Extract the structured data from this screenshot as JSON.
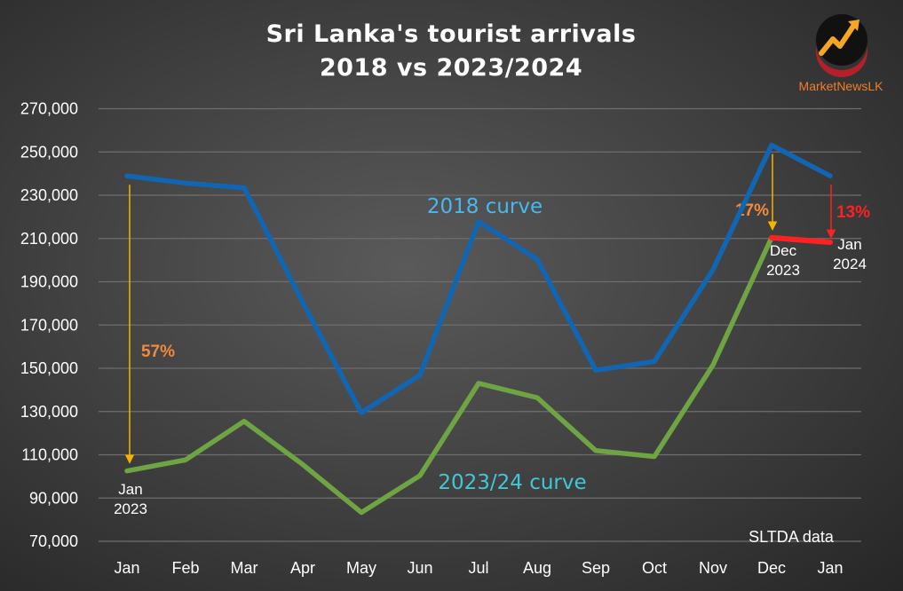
{
  "title_line1": "Sri Lanka's tourist arrivals",
  "title_line2": "2018 vs 2023/2024",
  "brand": {
    "name": "MarketNewsLK",
    "icon": "rising-chart-logo-icon",
    "name_color": "#f07d2a"
  },
  "source_note": "SLTDA data",
  "colors": {
    "series_2018": "#1166b3",
    "series_2023": "#6fa442",
    "series_2018_label": "#47b8f0",
    "series_2023_label": "#3ec8d8",
    "annotation_orange": "#f08b3c",
    "annotation_red": "#ff2020",
    "arrow_yellow": "#f5b400"
  },
  "chart_data": {
    "type": "line",
    "categories": [
      "Jan",
      "Feb",
      "Mar",
      "Apr",
      "May",
      "Jun",
      "Jul",
      "Aug",
      "Sep",
      "Oct",
      "Nov",
      "Dec",
      "Jan"
    ],
    "ylim": [
      70000,
      270000
    ],
    "yticks": [
      70000,
      90000,
      110000,
      130000,
      150000,
      170000,
      190000,
      210000,
      230000,
      250000,
      270000
    ],
    "ytick_labels": [
      "70,000",
      "90,000",
      "110,000",
      "130,000",
      "150,000",
      "170,000",
      "190,000",
      "210,000",
      "230,000",
      "250,000",
      "270,000"
    ],
    "grid": true,
    "legend": "none",
    "series": [
      {
        "name": "2018 curve",
        "values": [
          238924,
          235618,
          233382,
          180429,
          129466,
          146828,
          217829,
          200359,
          149087,
          153123,
          195582,
          253169,
          238924
        ]
      },
      {
        "name": "2023/24 curve",
        "values": [
          102545,
          107639,
          125495,
          105498,
          83309,
          100388,
          143039,
          136405,
          111938,
          109199,
          151496,
          210352,
          208253
        ]
      }
    ],
    "annotations": [
      {
        "text": "57%",
        "kind": "drop",
        "from_series": 0,
        "to_series": 1,
        "index": 0
      },
      {
        "text": "17%",
        "kind": "drop",
        "from_series": 0,
        "to_series": 1,
        "index": 11
      },
      {
        "text": "13%",
        "kind": "drop",
        "from_series": 0,
        "to_series": 1,
        "index": 12
      }
    ],
    "point_labels": [
      {
        "line1": "Jan",
        "line2": "2023",
        "index": 0
      },
      {
        "line1": "Dec",
        "line2": "2023",
        "index": 11
      },
      {
        "line1": "Jan",
        "line2": "2024",
        "index": 12
      }
    ]
  }
}
